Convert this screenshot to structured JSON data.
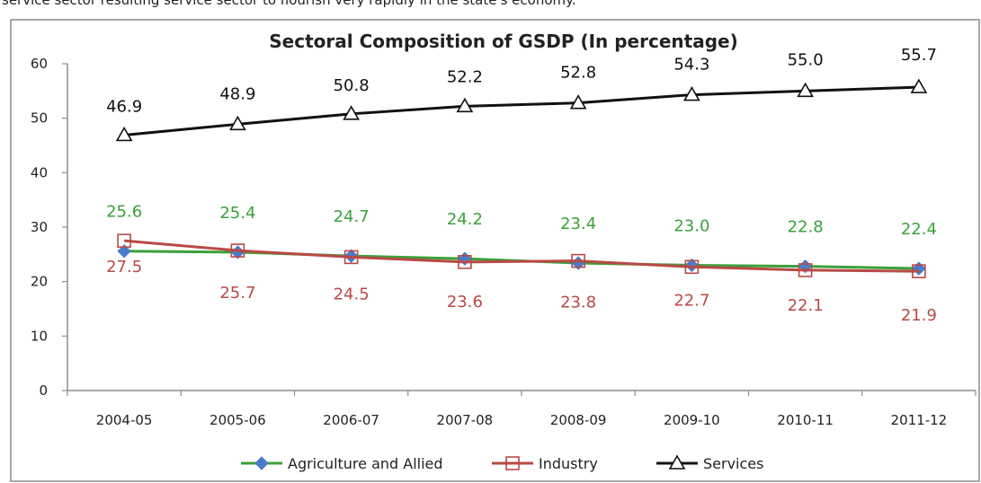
{
  "caption": "service sector resulting service sector to flourish very rapidly in the state's economy.",
  "colors": {
    "agriculture": "#3ba03b",
    "industry": "#b84a46",
    "services": "#111111",
    "marker_agri": "#4a7cc7",
    "frame": "#8c8c8c"
  },
  "chart_data": {
    "type": "line",
    "title": "Sectoral Composition of GSDP (In percentage)",
    "xlabel": "",
    "ylabel": "",
    "categories": [
      "2004-05",
      "2005-06",
      "2006-07",
      "2007-08",
      "2008-09",
      "2009-10",
      "2010-11",
      "2011-12"
    ],
    "ylim": [
      0,
      60
    ],
    "yticks": [
      0,
      10,
      20,
      30,
      40,
      50,
      60
    ],
    "grid": false,
    "legend": "bottom",
    "series": [
      {
        "name": "Agriculture and Allied",
        "marker": "diamond",
        "values": [
          25.6,
          25.4,
          24.7,
          24.2,
          23.4,
          23.0,
          22.8,
          22.4
        ],
        "labels": [
          "25.6",
          "25.4",
          "24.7",
          "24.2",
          "23.4",
          "23.0",
          "22.8",
          "22.4"
        ]
      },
      {
        "name": "Industry",
        "marker": "square",
        "values": [
          27.5,
          25.7,
          24.5,
          23.6,
          23.8,
          22.7,
          22.1,
          21.9
        ],
        "labels": [
          "27.5",
          "25.7",
          "24.5",
          "23.6",
          "23.8",
          "22.7",
          "22.1",
          "21.9"
        ]
      },
      {
        "name": "Services",
        "marker": "triangle",
        "values": [
          46.9,
          48.9,
          50.8,
          52.2,
          52.8,
          54.3,
          55.0,
          55.7
        ],
        "labels": [
          "46.9",
          "48.9",
          "50.8",
          "52.2",
          "52.8",
          "54.3",
          "55.0",
          "55.7"
        ]
      }
    ]
  }
}
